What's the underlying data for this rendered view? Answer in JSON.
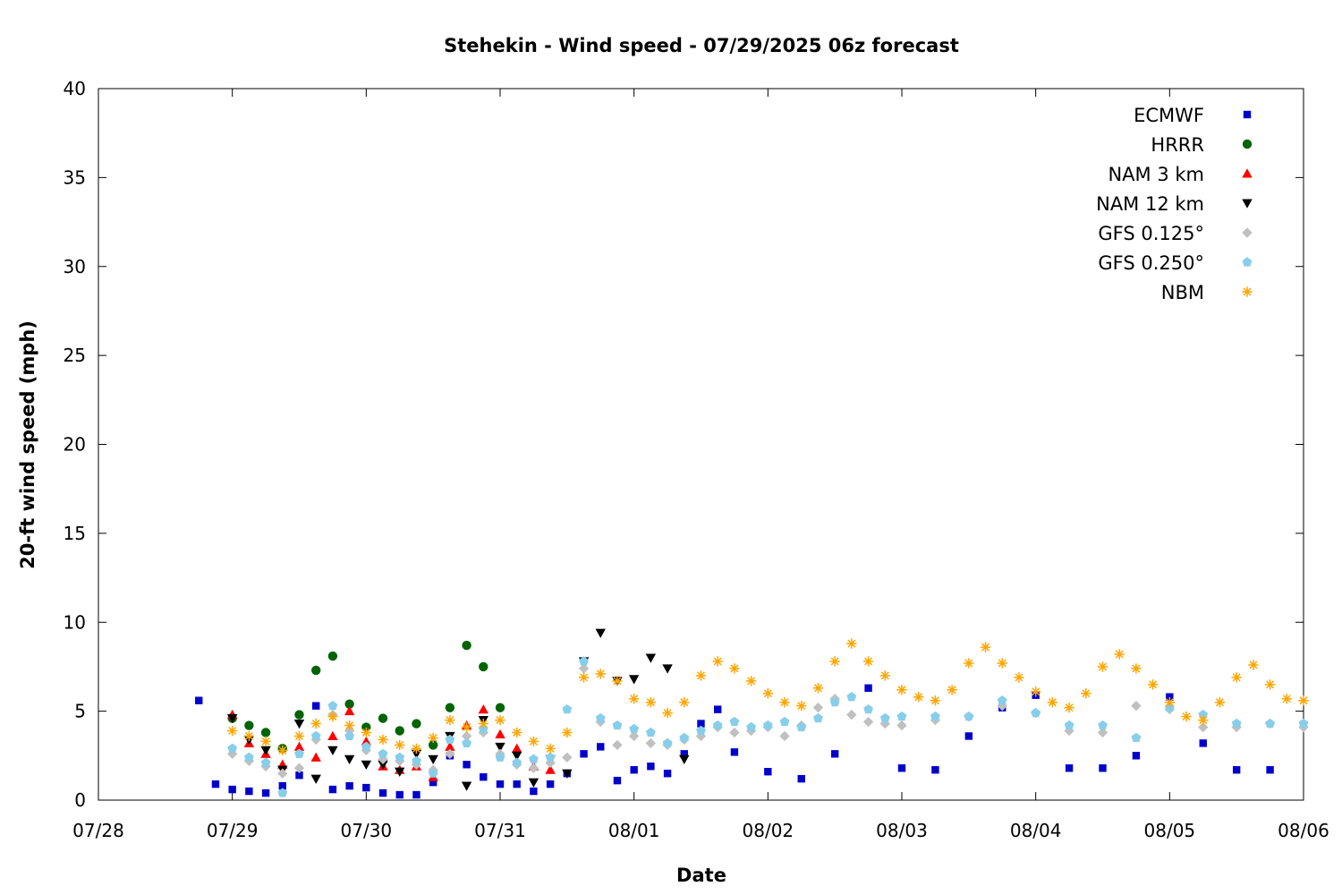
{
  "chart_data": {
    "type": "scatter",
    "title": "Stehekin - Wind speed - 07/29/2025 06z forecast",
    "xlabel": "Date",
    "ylabel": "20-ft wind speed (mph)",
    "xlim": [
      "2025-07-28T00:00",
      "2025-08-06T00:00"
    ],
    "ylim": [
      0,
      40
    ],
    "yticks": [
      0,
      5,
      10,
      15,
      20,
      25,
      30,
      35,
      40
    ],
    "xticks": [
      {
        "label": "07/28",
        "date": "2025-07-28T00:00"
      },
      {
        "label": "07/29",
        "date": "2025-07-29T00:00"
      },
      {
        "label": "07/30",
        "date": "2025-07-30T00:00"
      },
      {
        "label": "07/31",
        "date": "2025-07-31T00:00"
      },
      {
        "label": "08/01",
        "date": "2025-08-01T00:00"
      },
      {
        "label": "08/02",
        "date": "2025-08-02T00:00"
      },
      {
        "label": "08/03",
        "date": "2025-08-03T00:00"
      },
      {
        "label": "08/04",
        "date": "2025-08-04T00:00"
      },
      {
        "label": "08/05",
        "date": "2025-08-05T00:00"
      },
      {
        "label": "08/06",
        "date": "2025-08-06T00:00"
      }
    ],
    "grid": false,
    "legend_position": "top-right",
    "series": [
      {
        "name": "ECMWF",
        "marker": "square",
        "color": "#0000cc",
        "x": [
          "2025-07-28T18:00",
          "2025-07-28T21:00",
          "2025-07-29T00:00",
          "2025-07-29T03:00",
          "2025-07-29T06:00",
          "2025-07-29T09:00",
          "2025-07-29T12:00",
          "2025-07-29T15:00",
          "2025-07-29T18:00",
          "2025-07-29T21:00",
          "2025-07-30T00:00",
          "2025-07-30T03:00",
          "2025-07-30T06:00",
          "2025-07-30T09:00",
          "2025-07-30T12:00",
          "2025-07-30T15:00",
          "2025-07-30T18:00",
          "2025-07-30T21:00",
          "2025-07-31T00:00",
          "2025-07-31T03:00",
          "2025-07-31T06:00",
          "2025-07-31T09:00",
          "2025-07-31T12:00",
          "2025-07-31T15:00",
          "2025-07-31T18:00",
          "2025-07-31T21:00",
          "2025-08-01T00:00",
          "2025-08-01T03:00",
          "2025-08-01T06:00",
          "2025-08-01T09:00",
          "2025-08-01T12:00",
          "2025-08-01T15:00",
          "2025-08-01T18:00",
          "2025-08-02T00:00",
          "2025-08-02T06:00",
          "2025-08-02T12:00",
          "2025-08-02T18:00",
          "2025-08-03T00:00",
          "2025-08-03T06:00",
          "2025-08-03T12:00",
          "2025-08-03T18:00",
          "2025-08-04T00:00",
          "2025-08-04T06:00",
          "2025-08-04T12:00",
          "2025-08-04T18:00",
          "2025-08-05T00:00",
          "2025-08-05T06:00",
          "2025-08-05T12:00",
          "2025-08-05T18:00"
        ],
        "y": [
          5.6,
          0.9,
          0.6,
          0.5,
          0.4,
          0.8,
          1.4,
          5.3,
          0.6,
          0.8,
          0.7,
          0.4,
          0.3,
          0.3,
          1.0,
          2.5,
          2.0,
          1.3,
          0.9,
          0.9,
          0.5,
          0.9,
          1.5,
          2.6,
          3.0,
          1.1,
          1.7,
          1.9,
          1.5,
          2.6,
          4.3,
          5.1,
          2.7,
          1.6,
          1.2,
          2.6,
          6.3,
          1.8,
          1.7,
          3.6,
          5.2,
          5.9,
          1.8,
          1.8,
          2.5,
          5.8,
          3.2,
          1.7,
          1.7
        ]
      },
      {
        "name": "HRRR",
        "marker": "circle",
        "color": "#006400",
        "x": [
          "2025-07-29T00:00",
          "2025-07-29T03:00",
          "2025-07-29T06:00",
          "2025-07-29T09:00",
          "2025-07-29T12:00",
          "2025-07-29T15:00",
          "2025-07-29T18:00",
          "2025-07-29T21:00",
          "2025-07-30T00:00",
          "2025-07-30T03:00",
          "2025-07-30T06:00",
          "2025-07-30T09:00",
          "2025-07-30T12:00",
          "2025-07-30T15:00",
          "2025-07-30T18:00",
          "2025-07-30T21:00",
          "2025-07-31T00:00"
        ],
        "y": [
          4.6,
          4.2,
          3.8,
          2.9,
          4.8,
          7.3,
          8.1,
          5.4,
          4.1,
          4.6,
          3.9,
          4.3,
          3.1,
          5.2,
          8.7,
          7.5,
          5.2
        ]
      },
      {
        "name": "NAM 3 km",
        "marker": "triangle-up",
        "color": "#ff0000",
        "x": [
          "2025-07-29T00:00",
          "2025-07-29T03:00",
          "2025-07-29T06:00",
          "2025-07-29T09:00",
          "2025-07-29T12:00",
          "2025-07-29T15:00",
          "2025-07-29T18:00",
          "2025-07-29T21:00",
          "2025-07-30T00:00",
          "2025-07-30T03:00",
          "2025-07-30T06:00",
          "2025-07-30T09:00",
          "2025-07-30T12:00",
          "2025-07-30T15:00",
          "2025-07-30T18:00",
          "2025-07-30T21:00",
          "2025-07-31T00:00",
          "2025-07-31T03:00",
          "2025-07-31T06:00",
          "2025-07-31T09:00"
        ],
        "y": [
          4.8,
          3.2,
          2.6,
          2.0,
          3.0,
          2.4,
          3.6,
          5.0,
          3.3,
          1.9,
          1.7,
          1.9,
          1.3,
          3.0,
          4.2,
          5.1,
          3.7,
          2.9,
          1.9,
          1.7
        ]
      },
      {
        "name": "NAM 12 km",
        "marker": "triangle-down",
        "color": "#000000",
        "x": [
          "2025-07-29T00:00",
          "2025-07-29T03:00",
          "2025-07-29T06:00",
          "2025-07-29T09:00",
          "2025-07-29T12:00",
          "2025-07-29T15:00",
          "2025-07-29T18:00",
          "2025-07-29T21:00",
          "2025-07-30T00:00",
          "2025-07-30T03:00",
          "2025-07-30T06:00",
          "2025-07-30T09:00",
          "2025-07-30T12:00",
          "2025-07-30T15:00",
          "2025-07-30T18:00",
          "2025-07-30T21:00",
          "2025-07-31T00:00",
          "2025-07-31T03:00",
          "2025-07-31T06:00",
          "2025-07-31T09:00",
          "2025-07-31T12:00",
          "2025-07-31T15:00",
          "2025-07-31T18:00",
          "2025-07-31T21:00",
          "2025-08-01T00:00",
          "2025-08-01T03:00",
          "2025-08-01T06:00",
          "2025-08-01T09:00"
        ],
        "y": [
          4.6,
          3.4,
          2.8,
          1.7,
          4.3,
          1.2,
          2.8,
          2.3,
          2.0,
          2.0,
          1.6,
          2.6,
          2.3,
          3.6,
          0.8,
          4.5,
          3.0,
          2.5,
          1.0,
          2.3,
          1.5,
          7.8,
          9.4,
          6.7,
          6.8,
          8.0,
          7.4,
          2.3
        ]
      },
      {
        "name": "GFS 0.125°",
        "marker": "diamond",
        "color": "#c0c0c0",
        "x": [
          "2025-07-29T00:00",
          "2025-07-29T03:00",
          "2025-07-29T06:00",
          "2025-07-29T09:00",
          "2025-07-29T12:00",
          "2025-07-29T15:00",
          "2025-07-29T18:00",
          "2025-07-29T21:00",
          "2025-07-30T00:00",
          "2025-07-30T03:00",
          "2025-07-30T06:00",
          "2025-07-30T09:00",
          "2025-07-30T12:00",
          "2025-07-30T15:00",
          "2025-07-30T18:00",
          "2025-07-30T21:00",
          "2025-07-31T00:00",
          "2025-07-31T03:00",
          "2025-07-31T06:00",
          "2025-07-31T09:00",
          "2025-07-31T12:00",
          "2025-07-31T15:00",
          "2025-07-31T18:00",
          "2025-07-31T21:00",
          "2025-08-01T00:00",
          "2025-08-01T03:00",
          "2025-08-01T06:00",
          "2025-08-01T09:00",
          "2025-08-01T12:00",
          "2025-08-01T15:00",
          "2025-08-01T18:00",
          "2025-08-01T21:00",
          "2025-08-02T00:00",
          "2025-08-02T03:00",
          "2025-08-02T06:00",
          "2025-08-02T09:00",
          "2025-08-02T12:00",
          "2025-08-02T15:00",
          "2025-08-02T18:00",
          "2025-08-02T21:00",
          "2025-08-03T00:00",
          "2025-08-03T06:00",
          "2025-08-03T12:00",
          "2025-08-03T18:00",
          "2025-08-04T00:00",
          "2025-08-04T06:00",
          "2025-08-04T12:00",
          "2025-08-04T18:00",
          "2025-08-05T00:00",
          "2025-08-05T06:00",
          "2025-08-05T12:00",
          "2025-08-05T18:00",
          "2025-08-06T00:00"
        ],
        "y": [
          2.6,
          2.2,
          1.9,
          1.5,
          1.8,
          3.4,
          4.8,
          3.9,
          2.8,
          2.3,
          2.2,
          2.0,
          1.7,
          2.6,
          3.6,
          3.8,
          2.6,
          2.0,
          1.8,
          2.1,
          2.4,
          7.4,
          4.4,
          3.1,
          3.6,
          3.2,
          3.1,
          3.4,
          3.6,
          4.1,
          3.8,
          3.9,
          4.1,
          3.6,
          4.2,
          5.2,
          5.7,
          4.8,
          4.4,
          4.3,
          4.2,
          4.5,
          4.7,
          5.3,
          4.9,
          3.9,
          3.8,
          5.3,
          5.1,
          4.1,
          4.1,
          4.3,
          4.1
        ]
      },
      {
        "name": "GFS 0.250°",
        "marker": "pentagon",
        "color": "#87ceeb",
        "x": [
          "2025-07-29T00:00",
          "2025-07-29T03:00",
          "2025-07-29T06:00",
          "2025-07-29T09:00",
          "2025-07-29T12:00",
          "2025-07-29T15:00",
          "2025-07-29T18:00",
          "2025-07-29T21:00",
          "2025-07-30T00:00",
          "2025-07-30T03:00",
          "2025-07-30T06:00",
          "2025-07-30T09:00",
          "2025-07-30T12:00",
          "2025-07-30T15:00",
          "2025-07-30T18:00",
          "2025-07-30T21:00",
          "2025-07-31T00:00",
          "2025-07-31T03:00",
          "2025-07-31T06:00",
          "2025-07-31T09:00",
          "2025-07-31T12:00",
          "2025-07-31T15:00",
          "2025-07-31T18:00",
          "2025-07-31T21:00",
          "2025-08-01T00:00",
          "2025-08-01T03:00",
          "2025-08-01T06:00",
          "2025-08-01T09:00",
          "2025-08-01T12:00",
          "2025-08-01T15:00",
          "2025-08-01T18:00",
          "2025-08-01T21:00",
          "2025-08-02T00:00",
          "2025-08-02T03:00",
          "2025-08-02T06:00",
          "2025-08-02T09:00",
          "2025-08-02T12:00",
          "2025-08-02T15:00",
          "2025-08-02T18:00",
          "2025-08-02T21:00",
          "2025-08-03T00:00",
          "2025-08-03T06:00",
          "2025-08-03T12:00",
          "2025-08-03T18:00",
          "2025-08-04T00:00",
          "2025-08-04T06:00",
          "2025-08-04T12:00",
          "2025-08-04T18:00",
          "2025-08-05T00:00",
          "2025-08-05T06:00",
          "2025-08-05T12:00",
          "2025-08-05T18:00",
          "2025-08-06T00:00"
        ],
        "y": [
          2.9,
          2.4,
          2.1,
          0.4,
          2.6,
          3.6,
          5.3,
          3.6,
          3.0,
          2.6,
          2.4,
          2.2,
          1.5,
          3.4,
          3.2,
          4.0,
          2.4,
          2.1,
          2.3,
          2.4,
          5.1,
          7.8,
          4.6,
          4.2,
          4.0,
          3.8,
          3.2,
          3.5,
          3.9,
          4.2,
          4.4,
          4.1,
          4.2,
          4.4,
          4.1,
          4.6,
          5.5,
          5.8,
          5.1,
          4.6,
          4.7,
          4.7,
          4.7,
          5.6,
          4.9,
          4.2,
          4.2,
          3.5,
          5.2,
          4.8,
          4.3,
          4.3,
          4.3
        ]
      },
      {
        "name": "NBM",
        "marker": "star",
        "color": "#ffa500",
        "x": [
          "2025-07-29T00:00",
          "2025-07-29T03:00",
          "2025-07-29T06:00",
          "2025-07-29T09:00",
          "2025-07-29T12:00",
          "2025-07-29T15:00",
          "2025-07-29T18:00",
          "2025-07-29T21:00",
          "2025-07-30T00:00",
          "2025-07-30T03:00",
          "2025-07-30T06:00",
          "2025-07-30T09:00",
          "2025-07-30T12:00",
          "2025-07-30T15:00",
          "2025-07-30T18:00",
          "2025-07-30T21:00",
          "2025-07-31T00:00",
          "2025-07-31T03:00",
          "2025-07-31T06:00",
          "2025-07-31T09:00",
          "2025-07-31T12:00",
          "2025-07-31T15:00",
          "2025-07-31T18:00",
          "2025-07-31T21:00",
          "2025-08-01T00:00",
          "2025-08-01T03:00",
          "2025-08-01T06:00",
          "2025-08-01T09:00",
          "2025-08-01T12:00",
          "2025-08-01T15:00",
          "2025-08-01T18:00",
          "2025-08-01T21:00",
          "2025-08-02T00:00",
          "2025-08-02T03:00",
          "2025-08-02T06:00",
          "2025-08-02T09:00",
          "2025-08-02T12:00",
          "2025-08-02T15:00",
          "2025-08-02T18:00",
          "2025-08-02T21:00",
          "2025-08-03T00:00",
          "2025-08-03T03:00",
          "2025-08-03T06:00",
          "2025-08-03T09:00",
          "2025-08-03T12:00",
          "2025-08-03T15:00",
          "2025-08-03T18:00",
          "2025-08-03T21:00",
          "2025-08-04T00:00",
          "2025-08-04T03:00",
          "2025-08-04T06:00",
          "2025-08-04T09:00",
          "2025-08-04T12:00",
          "2025-08-04T15:00",
          "2025-08-04T18:00",
          "2025-08-04T21:00",
          "2025-08-05T00:00",
          "2025-08-05T03:00",
          "2025-08-05T06:00",
          "2025-08-05T09:00",
          "2025-08-05T12:00",
          "2025-08-05T15:00",
          "2025-08-05T18:00",
          "2025-08-05T21:00",
          "2025-08-06T00:00"
        ],
        "y": [
          3.9,
          3.6,
          3.3,
          2.8,
          3.6,
          4.3,
          4.7,
          4.2,
          3.8,
          3.4,
          3.1,
          2.9,
          3.5,
          4.5,
          4.1,
          4.3,
          4.5,
          3.8,
          3.3,
          2.9,
          3.8,
          6.9,
          7.1,
          6.7,
          5.7,
          5.5,
          4.9,
          5.5,
          7.0,
          7.8,
          7.4,
          6.7,
          6.0,
          5.5,
          5.3,
          6.3,
          7.8,
          8.8,
          7.8,
          7.0,
          6.2,
          5.8,
          5.6,
          6.2,
          7.7,
          8.6,
          7.7,
          6.9,
          6.1,
          5.5,
          5.2,
          6.0,
          7.5,
          8.2,
          7.4,
          6.5,
          5.5,
          4.7,
          4.5,
          5.5,
          6.9,
          7.6,
          6.5,
          5.7,
          5.6
        ]
      }
    ]
  }
}
